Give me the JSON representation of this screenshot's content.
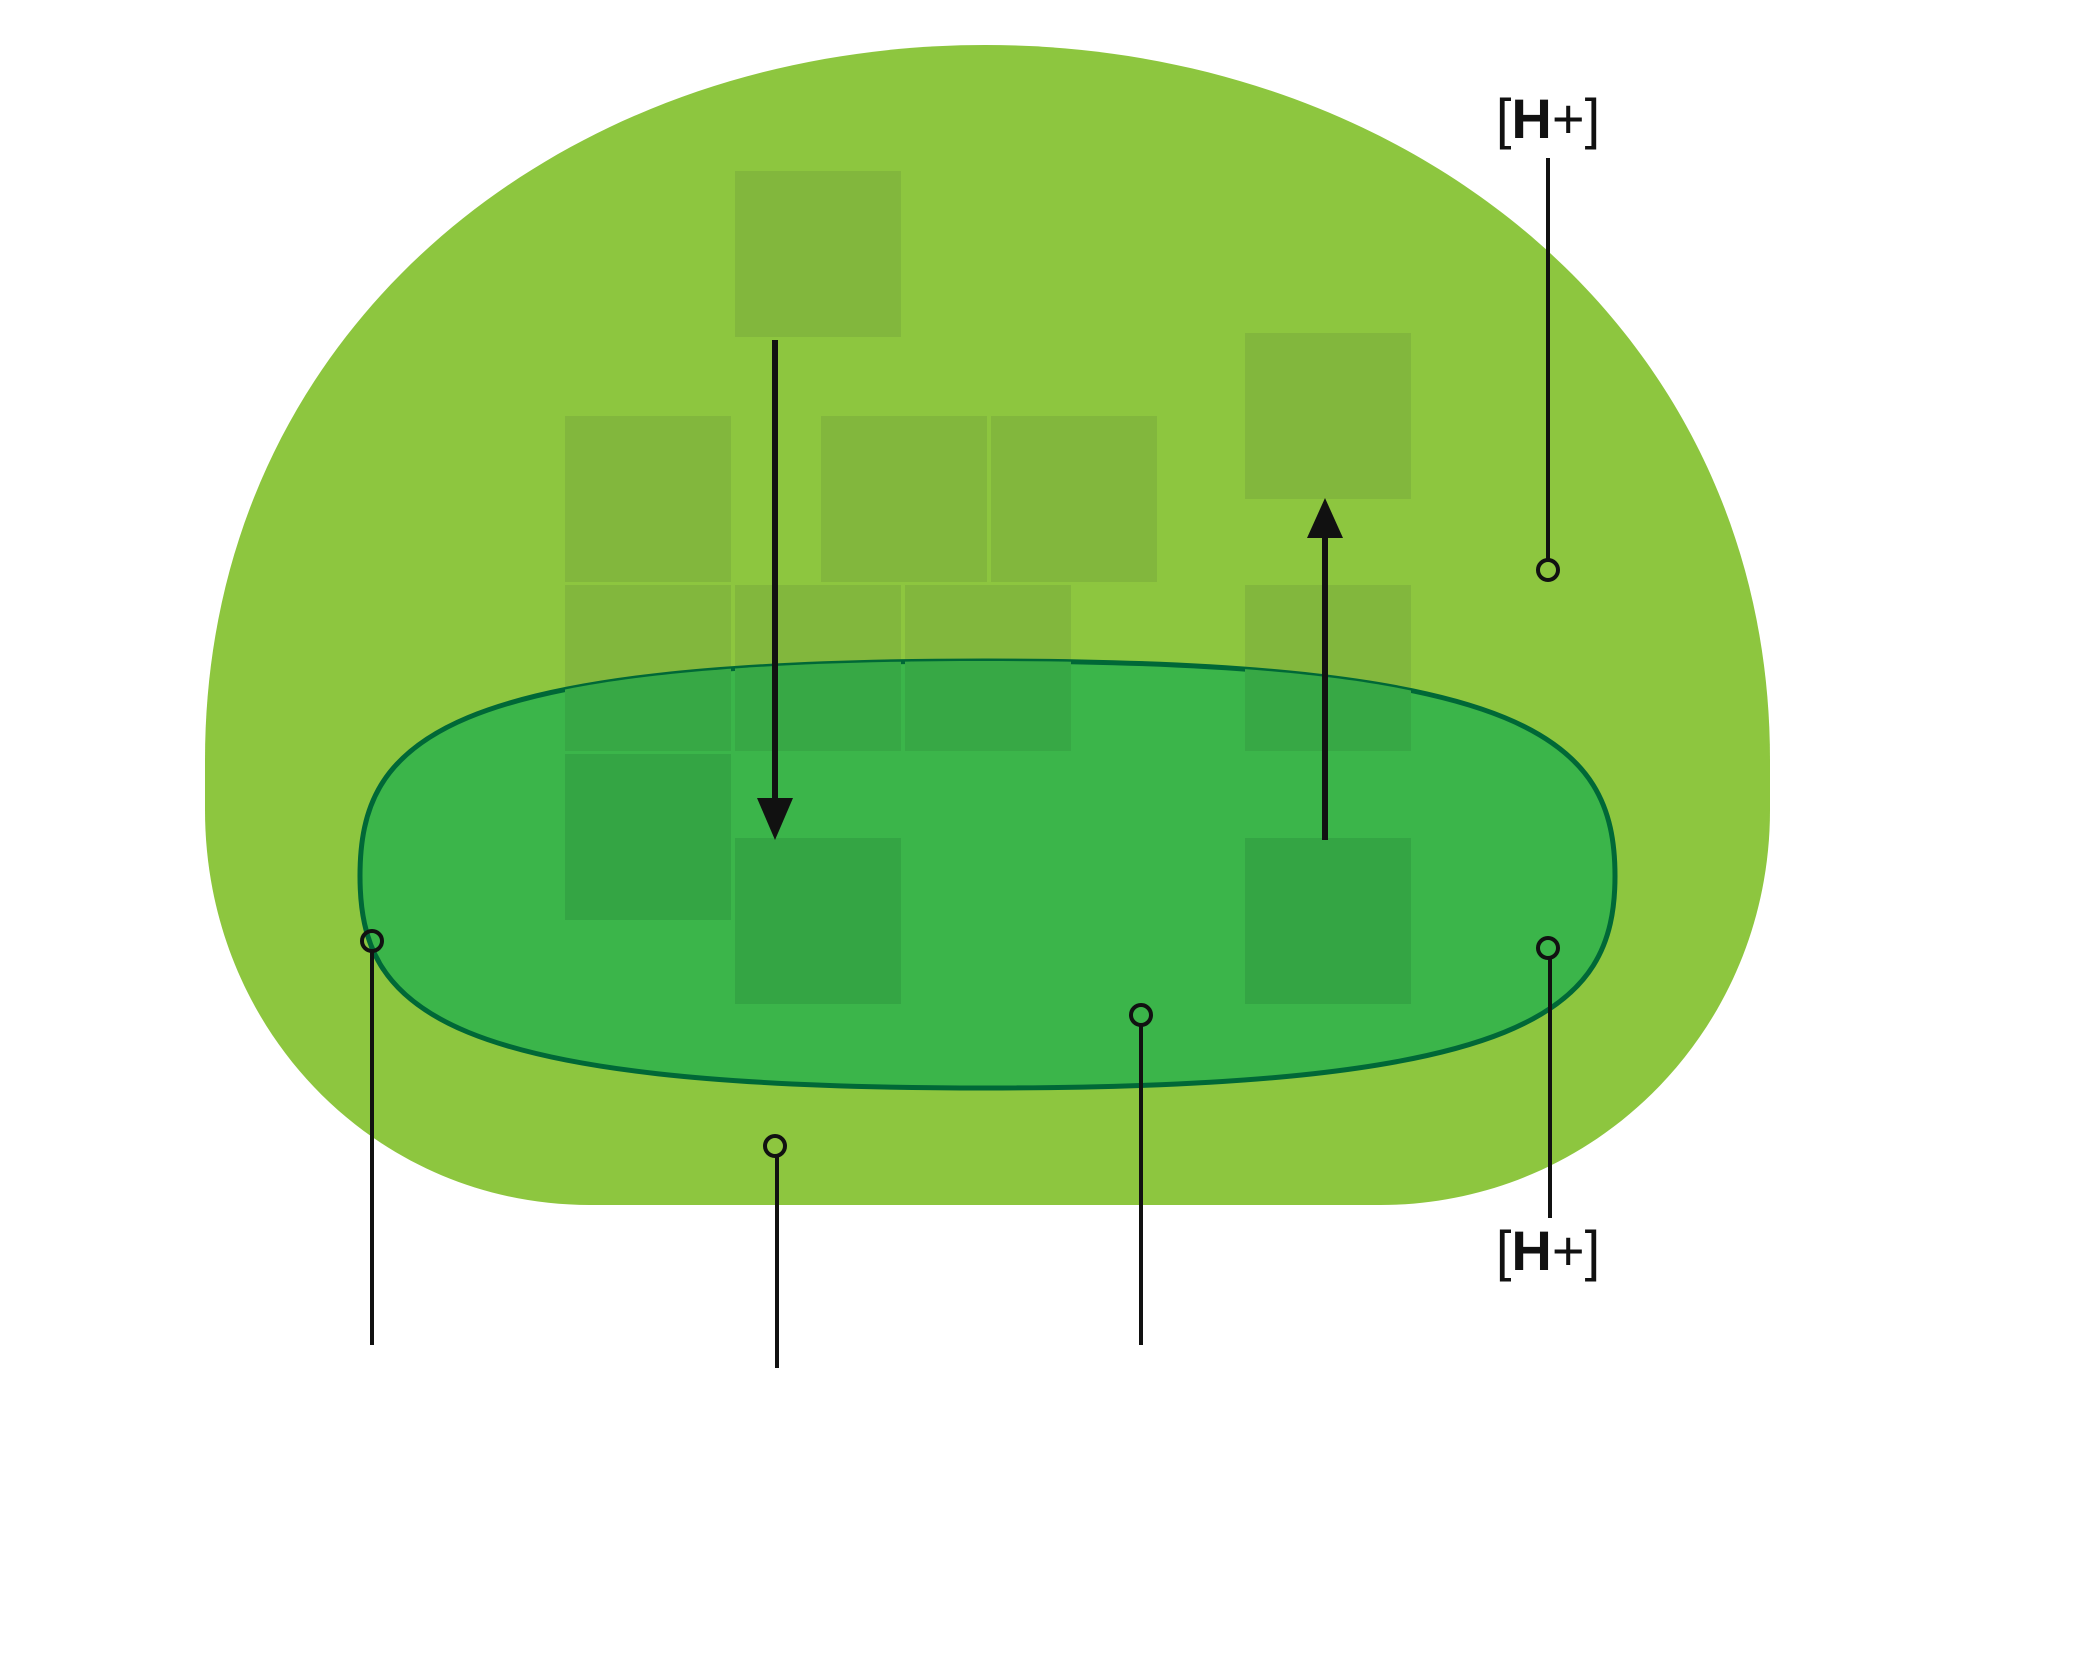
{
  "diagram": {
    "labels": {
      "h_top": {
        "open": "[",
        "letter": "H",
        "sign": "+",
        "close": "]"
      },
      "h_bottom": {
        "open": "[",
        "letter": "H",
        "sign": "+",
        "close": "]"
      }
    },
    "colors": {
      "background": "#ffffff",
      "outer_compartment": "#8dc63f",
      "outer_square": "#82b73d",
      "inner_compartment": "#3bb54a",
      "inner_outline": "#006837",
      "inner_square": "#34a544",
      "overlap_square": "#37a845",
      "line": "#111111"
    },
    "icons": {
      "leader_end": "circle-marker-icon",
      "arrow": "arrowhead-icon"
    }
  }
}
